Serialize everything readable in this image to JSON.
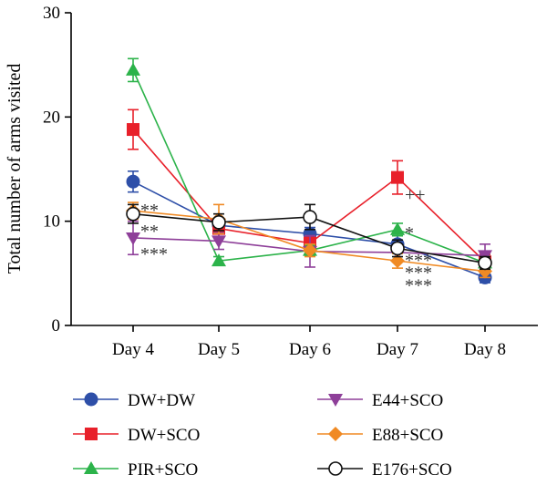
{
  "chart_data": {
    "type": "line",
    "title": "",
    "xlabel": "",
    "ylabel": "Total number of arms visited",
    "ylim": [
      0,
      30
    ],
    "yticks": [
      "0",
      "10",
      "20",
      "30"
    ],
    "categories": [
      "Day 4",
      "Day 5",
      "Day 6",
      "Day 7",
      "Day 8"
    ],
    "legend_position": "bottom",
    "series": [
      {
        "name": "DW+DW",
        "color": "#2e4fa8",
        "marker": "circle",
        "values": [
          13.8,
          9.6,
          8.8,
          7.8,
          4.6
        ],
        "errors": [
          1.0,
          0.6,
          0.6,
          0.8,
          0.5
        ]
      },
      {
        "name": "DW+SCO",
        "color": "#e8202a",
        "marker": "square",
        "values": [
          18.8,
          9.3,
          7.9,
          14.2,
          6.1
        ],
        "errors": [
          1.9,
          0.8,
          0.7,
          1.6,
          0.7
        ]
      },
      {
        "name": "PIR+SCO",
        "color": "#2cb34a",
        "marker": "triangle-up",
        "values": [
          24.5,
          6.2,
          7.2,
          9.2,
          6.0
        ],
        "errors": [
          1.1,
          0.4,
          0.5,
          0.6,
          0.6
        ]
      },
      {
        "name": "E44+SCO",
        "color": "#8e3f99",
        "marker": "triangle-down",
        "values": [
          8.4,
          8.1,
          7.1,
          7.0,
          6.7
        ],
        "errors": [
          1.6,
          0.8,
          1.5,
          0.8,
          1.1
        ]
      },
      {
        "name": "E88+SCO",
        "color": "#f08a24",
        "marker": "diamond",
        "values": [
          11.0,
          10.2,
          7.2,
          6.2,
          5.2
        ],
        "errors": [
          0.8,
          1.4,
          0.6,
          0.7,
          0.6
        ]
      },
      {
        "name": "E176+SCO",
        "color": "#111111",
        "marker": "open-circle",
        "values": [
          10.7,
          9.9,
          10.4,
          7.4,
          6.0
        ],
        "errors": [
          0.9,
          0.8,
          1.2,
          0.8,
          0.6
        ]
      }
    ],
    "annotations": [
      {
        "category": "Day 4",
        "value": 11.2,
        "text": "**"
      },
      {
        "category": "Day 4",
        "value": 9.2,
        "text": "**"
      },
      {
        "category": "Day 4",
        "value": 7.0,
        "text": "***"
      },
      {
        "category": "Day 7",
        "value": 12.7,
        "text": "++"
      },
      {
        "category": "Day 7",
        "value": 9.0,
        "text": "*"
      },
      {
        "category": "Day 7",
        "value": 6.4,
        "text": "***"
      },
      {
        "category": "Day 7",
        "value": 5.2,
        "text": "***"
      },
      {
        "category": "Day 7",
        "value": 4.0,
        "text": "***"
      }
    ]
  }
}
